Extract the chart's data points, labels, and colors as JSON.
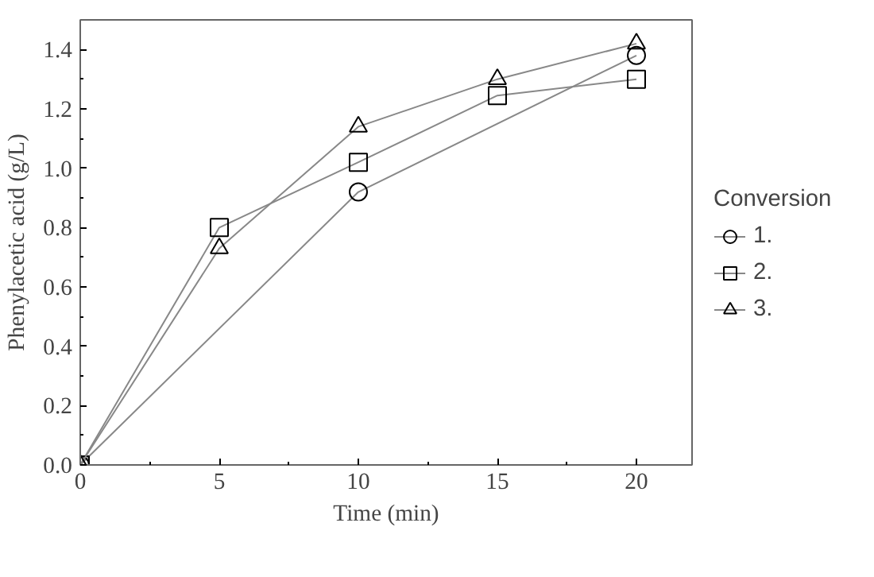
{
  "chart_data": {
    "type": "line",
    "xlabel": "Time (min)",
    "ylabel": "Phenylacetic acid (g/L)",
    "legend_title": "Conversion",
    "x": [
      0,
      5,
      10,
      15,
      20
    ],
    "series": [
      {
        "name": "1.",
        "color": "#000000",
        "marker": "circle",
        "x": [
          0,
          10,
          20
        ],
        "values": [
          0,
          0.92,
          1.38
        ]
      },
      {
        "name": "2.",
        "color": "#000000",
        "marker": "square",
        "values": [
          0,
          0.8,
          1.02,
          1.245,
          1.3
        ]
      },
      {
        "name": "3.",
        "color": "#000000",
        "marker": "triangle",
        "values": [
          0,
          0.73,
          1.14,
          1.3,
          1.42
        ]
      }
    ],
    "xlim": [
      0,
      22
    ],
    "ylim": [
      0,
      1.5
    ],
    "xticks": [
      0,
      5,
      10,
      15,
      20
    ],
    "yticks": [
      {
        "value": 0,
        "label": "0.0"
      },
      {
        "value": 0.2,
        "label": "0.2"
      },
      {
        "value": 0.4,
        "label": "0.4"
      },
      {
        "value": 0.6,
        "label": "0.6"
      },
      {
        "value": 0.8,
        "label": "0.8"
      },
      {
        "value": 1.0,
        "label": "1.0"
      },
      {
        "value": 1.2,
        "label": "1.2"
      },
      {
        "value": 1.4,
        "label": "1.4"
      }
    ],
    "grid": false,
    "legend": "right",
    "line_style": "solid"
  }
}
